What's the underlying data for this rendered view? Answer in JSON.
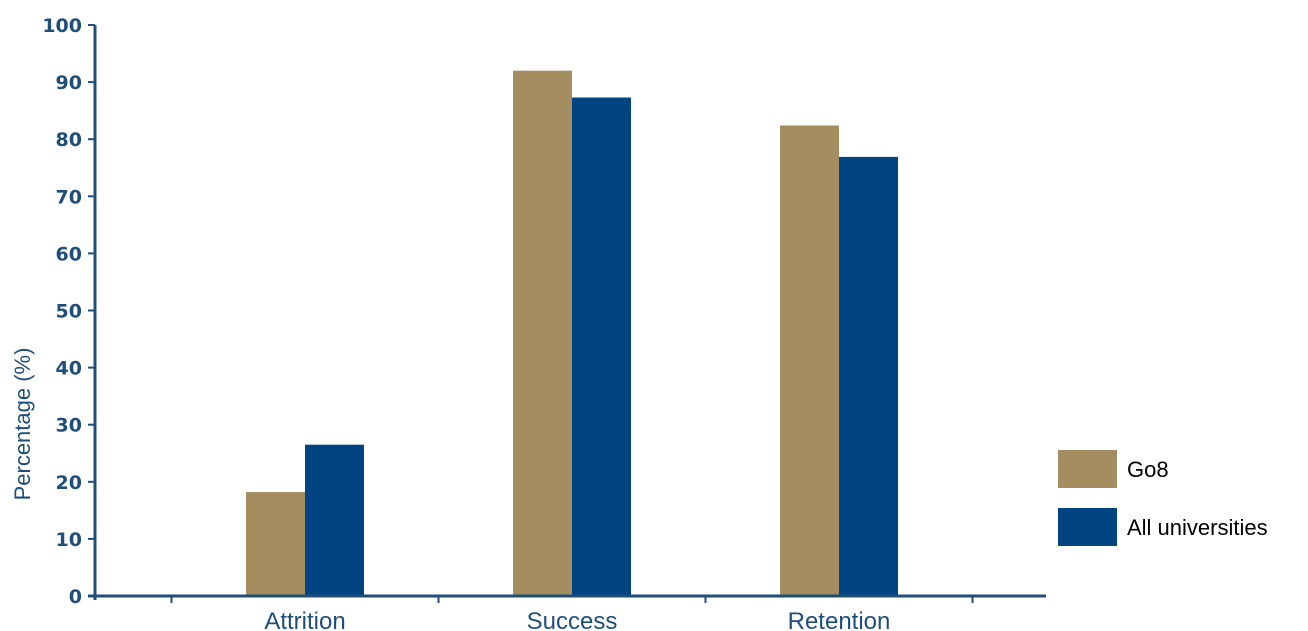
{
  "chart_data": {
    "type": "bar",
    "title": "",
    "xlabel": "",
    "ylabel": "Percentage (%)",
    "ylim": [
      0,
      100
    ],
    "yticks": [
      0,
      10,
      20,
      30,
      40,
      50,
      60,
      70,
      80,
      90,
      100
    ],
    "categories": [
      "Attrition",
      "Success",
      "Retention"
    ],
    "series": [
      {
        "name": "Go8",
        "color": "#a48e5f",
        "values": [
          18.2,
          92.0,
          82.4
        ]
      },
      {
        "name": "All universities",
        "color": "#004481",
        "values": [
          26.5,
          87.3,
          76.9
        ]
      }
    ],
    "legend_position": "right",
    "grid": false,
    "axis_color": "#1f4e79"
  }
}
